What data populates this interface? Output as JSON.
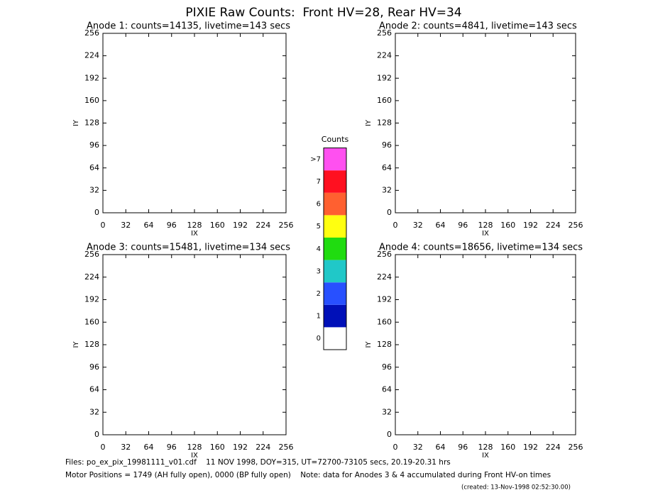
{
  "title": "PIXIE Raw Counts:  Front HV=28, Rear HV=34",
  "chart_data": [
    {
      "type": "image",
      "title": "Anode 1: counts=14135, livetime=143 secs",
      "xlabel": "IX",
      "ylabel": "IY",
      "xlim": [
        0,
        256
      ],
      "ylim": [
        0,
        256
      ],
      "xticks": [
        0,
        32,
        64,
        96,
        128,
        160,
        192,
        224,
        256
      ],
      "yticks": [
        0,
        32,
        64,
        96,
        128,
        160,
        192,
        224,
        256
      ]
    },
    {
      "type": "image",
      "title": "Anode 2: counts=4841, livetime=143 secs",
      "xlabel": "IX",
      "ylabel": "IY",
      "xlim": [
        0,
        256
      ],
      "ylim": [
        0,
        256
      ],
      "xticks": [
        0,
        32,
        64,
        96,
        128,
        160,
        192,
        224,
        256
      ],
      "yticks": [
        0,
        32,
        64,
        96,
        128,
        160,
        192,
        224,
        256
      ]
    },
    {
      "type": "image",
      "title": "Anode 3: counts=15481, livetime=134 secs",
      "xlabel": "IX",
      "ylabel": "IY",
      "xlim": [
        0,
        256
      ],
      "ylim": [
        0,
        256
      ],
      "xticks": [
        0,
        32,
        64,
        96,
        128,
        160,
        192,
        224,
        256
      ],
      "yticks": [
        0,
        32,
        64,
        96,
        128,
        160,
        192,
        224,
        256
      ]
    },
    {
      "type": "image",
      "title": "Anode 4: counts=18656, livetime=134 secs",
      "xlabel": "IX",
      "ylabel": "IY",
      "xlim": [
        0,
        256
      ],
      "ylim": [
        0,
        256
      ],
      "xticks": [
        0,
        32,
        64,
        96,
        128,
        160,
        192,
        224,
        256
      ],
      "yticks": [
        0,
        32,
        64,
        96,
        128,
        160,
        192,
        224,
        256
      ]
    }
  ],
  "colorbar": {
    "title": "Counts",
    "levels": [
      {
        "label": "0",
        "color": "#ffffff"
      },
      {
        "label": "1",
        "color": "#0010b8"
      },
      {
        "label": "2",
        "color": "#2850ff"
      },
      {
        "label": "3",
        "color": "#20c8c8"
      },
      {
        "label": "4",
        "color": "#20dc10"
      },
      {
        "label": "5",
        "color": "#ffff10"
      },
      {
        "label": "6",
        "color": "#ff6030"
      },
      {
        "label": "7",
        "color": "#ff1020"
      },
      {
        "label": ">7",
        "color": "#ff50f0"
      }
    ]
  },
  "footer": [
    "Files: po_ex_pix_19981111_v01.cdf    11 NOV 1998, DOY=315, UT=72700-73105 secs, 20.19-20.31 hrs",
    "Motor Positions = 1749 (AH fully open), 0000 (BP fully open)    Note: data for Anodes 3 & 4 accumulated during Front HV-on times",
    "(created: 13-Nov-1998 02:52:30.00)"
  ]
}
